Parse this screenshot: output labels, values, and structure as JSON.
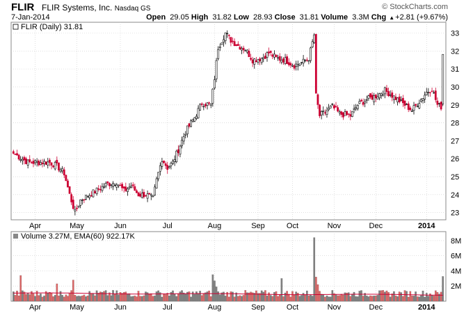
{
  "header": {
    "symbol": "FLIR",
    "company": "FLIR Systems, Inc.",
    "exchange": "Nasdaq GS",
    "brand": "© StockCharts.com",
    "date": "7-Jan-2014",
    "open_label": "Open",
    "open": "29.05",
    "high_label": "High",
    "high": "31.82",
    "low_label": "Low",
    "low": "28.93",
    "close_label": "Close",
    "close": "31.81",
    "volume_label": "Volume",
    "volume": "3.3M",
    "chg_label": "Chg",
    "chg": "+2.81 (+9.67%)",
    "up_arrow": "▲"
  },
  "colors": {
    "up": "#000000",
    "down": "#cc0033",
    "ema": "#cc0033",
    "vol_up": "#808080",
    "vol_down": "#e06666",
    "grid": "#cccccc"
  },
  "chart_data": [
    {
      "type": "candlestick",
      "legend": "FLIR (Daily) 31.81",
      "ylim": [
        22.6,
        33.6
      ],
      "yticks": [
        23,
        24,
        25,
        26,
        27,
        28,
        29,
        30,
        31,
        32,
        33
      ],
      "x_labels": [
        "Apr",
        "May",
        "Jun",
        "Jul",
        "Aug",
        "Sep",
        "Oct",
        "Nov",
        "Dec",
        "2014"
      ],
      "close_anchors": [
        [
          0,
          26.3
        ],
        [
          8,
          25.8
        ],
        [
          20,
          25.8
        ],
        [
          24,
          25.6
        ],
        [
          28,
          25.2
        ],
        [
          31,
          24.0
        ],
        [
          34,
          23.0
        ],
        [
          37,
          23.7
        ],
        [
          42,
          24.0
        ],
        [
          47,
          24.3
        ],
        [
          52,
          24.6
        ],
        [
          57,
          24.7
        ],
        [
          61,
          24.2
        ],
        [
          65,
          24.5
        ],
        [
          69,
          24.0
        ],
        [
          73,
          24.0
        ],
        [
          77,
          23.8
        ],
        [
          79,
          24.8
        ],
        [
          82,
          26.0
        ],
        [
          85,
          25.5
        ],
        [
          88,
          25.8
        ],
        [
          91,
          26.5
        ],
        [
          95,
          27.5
        ],
        [
          100,
          28.3
        ],
        [
          104,
          29.1
        ],
        [
          109,
          29.0
        ],
        [
          111,
          30.5
        ],
        [
          113,
          32.2
        ],
        [
          117,
          33.0
        ],
        [
          120,
          32.6
        ],
        [
          124,
          32.3
        ],
        [
          128,
          32.1
        ],
        [
          132,
          31.5
        ],
        [
          137,
          31.6
        ],
        [
          141,
          31.9
        ],
        [
          145,
          31.6
        ],
        [
          150,
          31.5
        ],
        [
          155,
          31.2
        ],
        [
          160,
          31.4
        ],
        [
          163,
          31.6
        ],
        [
          166,
          32.9
        ],
        [
          167,
          29.5
        ],
        [
          169,
          28.4
        ],
        [
          172,
          28.6
        ],
        [
          176,
          28.9
        ],
        [
          180,
          28.5
        ],
        [
          186,
          28.4
        ],
        [
          190,
          29.0
        ],
        [
          195,
          29.3
        ],
        [
          200,
          29.5
        ],
        [
          205,
          29.8
        ],
        [
          208,
          29.6
        ],
        [
          212,
          29.3
        ],
        [
          216,
          29.0
        ],
        [
          220,
          28.7
        ],
        [
          224,
          29.2
        ],
        [
          228,
          29.7
        ],
        [
          231,
          29.9
        ],
        [
          234,
          29.0
        ],
        [
          236,
          28.9
        ],
        [
          237,
          31.81
        ]
      ]
    },
    {
      "type": "bar",
      "legend": "Volume 3.27M, EMA(60) 922.17K",
      "ylim": [
        0,
        9000000
      ],
      "yticks": [
        2000000,
        4000000,
        6000000,
        8000000
      ],
      "ytick_labels": [
        "2M",
        "4M",
        "6M",
        "8M"
      ],
      "ema_value": 922170,
      "last_volume": 3270000
    }
  ]
}
